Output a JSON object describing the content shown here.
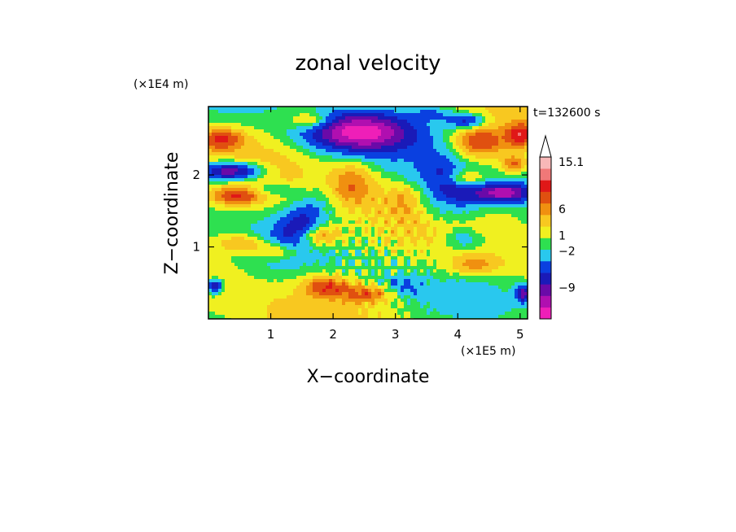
{
  "chart_data": {
    "type": "heatmap",
    "title": "zonal velocity",
    "xlabel": "X−coordinate",
    "ylabel": "Z−coordinate",
    "x_unit": "(×1E5 m)",
    "y_unit": "(×1E4 m)",
    "time_label": "t=132600 s",
    "xlim": [
      0,
      5.12
    ],
    "ylim": [
      0,
      2.95
    ],
    "x_ticks": [
      {
        "value": 1,
        "label": "1"
      },
      {
        "value": 2,
        "label": "2"
      },
      {
        "value": 3,
        "label": "3"
      },
      {
        "value": 4,
        "label": "4"
      },
      {
        "value": 5,
        "label": "5"
      }
    ],
    "y_ticks": [
      {
        "value": 1,
        "label": "1"
      },
      {
        "value": 2,
        "label": "2"
      }
    ],
    "colorbar": {
      "levels": [
        {
          "color": "#ee1fb8"
        },
        {
          "color": "#b00fb0"
        },
        {
          "color": "#6a0aa8"
        },
        {
          "color": "#1a1ab8"
        },
        {
          "color": "#0a40e0"
        },
        {
          "color": "#29c8ee"
        },
        {
          "color": "#2ee050"
        },
        {
          "color": "#f0f020"
        },
        {
          "color": "#f8c820"
        },
        {
          "color": "#f09010"
        },
        {
          "color": "#e05010"
        },
        {
          "color": "#e01818"
        },
        {
          "color": "#f07878"
        },
        {
          "color": "#f8b8b8"
        }
      ],
      "labels": [
        {
          "text": "15.1",
          "value": 15.1
        },
        {
          "text": "6",
          "value": 6
        },
        {
          "text": "1",
          "value": 1
        },
        {
          "text": "−2",
          "value": -2
        },
        {
          "text": "−9",
          "value": -9
        }
      ]
    },
    "blobs": [
      {
        "x": 2.4,
        "z": 2.6,
        "rx": 0.85,
        "rz": 0.28,
        "amp": -11
      },
      {
        "x": 1.65,
        "z": 2.75,
        "rx": 0.35,
        "rz": 0.12,
        "amp": 5
      },
      {
        "x": 4.15,
        "z": 2.75,
        "rx": 0.3,
        "rz": 0.1,
        "amp": -6
      },
      {
        "x": 3.6,
        "z": 2.85,
        "rx": 0.35,
        "rz": 0.1,
        "amp": -3
      },
      {
        "x": 0.2,
        "z": 2.5,
        "rx": 0.35,
        "rz": 0.14,
        "amp": 6
      },
      {
        "x": 4.35,
        "z": 2.45,
        "rx": 0.4,
        "rz": 0.2,
        "amp": 6
      },
      {
        "x": 5.0,
        "z": 2.55,
        "rx": 0.2,
        "rz": 0.14,
        "amp": 7
      },
      {
        "x": 0.35,
        "z": 2.05,
        "rx": 0.5,
        "rz": 0.13,
        "amp": -10
      },
      {
        "x": 0.45,
        "z": 1.7,
        "rx": 0.4,
        "rz": 0.12,
        "amp": 6
      },
      {
        "x": 1.05,
        "z": 1.8,
        "rx": 0.35,
        "rz": 0.1,
        "amp": -3
      },
      {
        "x": 4.7,
        "z": 1.75,
        "rx": 0.45,
        "rz": 0.13,
        "amp": -10
      },
      {
        "x": 4.05,
        "z": 1.95,
        "rx": 0.3,
        "rz": 0.12,
        "amp": 5
      },
      {
        "x": 3.9,
        "z": 1.85,
        "rx": 0.28,
        "rz": 0.5,
        "amp": -7,
        "tilt": 55
      },
      {
        "x": 3.55,
        "z": 1.6,
        "rx": 0.25,
        "rz": 0.6,
        "amp": -3,
        "tilt": 55
      },
      {
        "x": 1.45,
        "z": 1.3,
        "rx": 0.28,
        "rz": 0.55,
        "amp": -5,
        "tilt": -45
      },
      {
        "x": 1.1,
        "z": 0.95,
        "rx": 0.35,
        "rz": 0.14,
        "amp": 5
      },
      {
        "x": 1.8,
        "z": 1.15,
        "rx": 0.35,
        "rz": 0.14,
        "amp": 5
      },
      {
        "x": 4.25,
        "z": 0.75,
        "rx": 0.45,
        "rz": 0.15,
        "amp": 4
      },
      {
        "x": 4.1,
        "z": 1.1,
        "rx": 0.35,
        "rz": 0.14,
        "amp": -3
      },
      {
        "x": 1.9,
        "z": 0.45,
        "rx": 0.35,
        "rz": 0.14,
        "amp": 6
      },
      {
        "x": 2.55,
        "z": 0.35,
        "rx": 0.4,
        "rz": 0.12,
        "amp": 5
      },
      {
        "x": 3.1,
        "z": 0.45,
        "rx": 0.3,
        "rz": 0.13,
        "amp": -3
      },
      {
        "x": 0.1,
        "z": 0.45,
        "rx": 0.12,
        "rz": 0.1,
        "amp": -8
      },
      {
        "x": 5.05,
        "z": 0.35,
        "rx": 0.12,
        "rz": 0.12,
        "amp": -8
      },
      {
        "x": 0.5,
        "z": 1.05,
        "rx": 0.35,
        "rz": 0.12,
        "amp": 4
      },
      {
        "x": 2.3,
        "z": 1.9,
        "rx": 0.35,
        "rz": 0.3,
        "amp": 4
      },
      {
        "x": 3.2,
        "z": 1.7,
        "rx": 0.3,
        "rz": 0.2,
        "amp": 3
      },
      {
        "x": 4.9,
        "z": 2.15,
        "rx": 0.2,
        "rz": 0.12,
        "amp": 5
      }
    ]
  }
}
